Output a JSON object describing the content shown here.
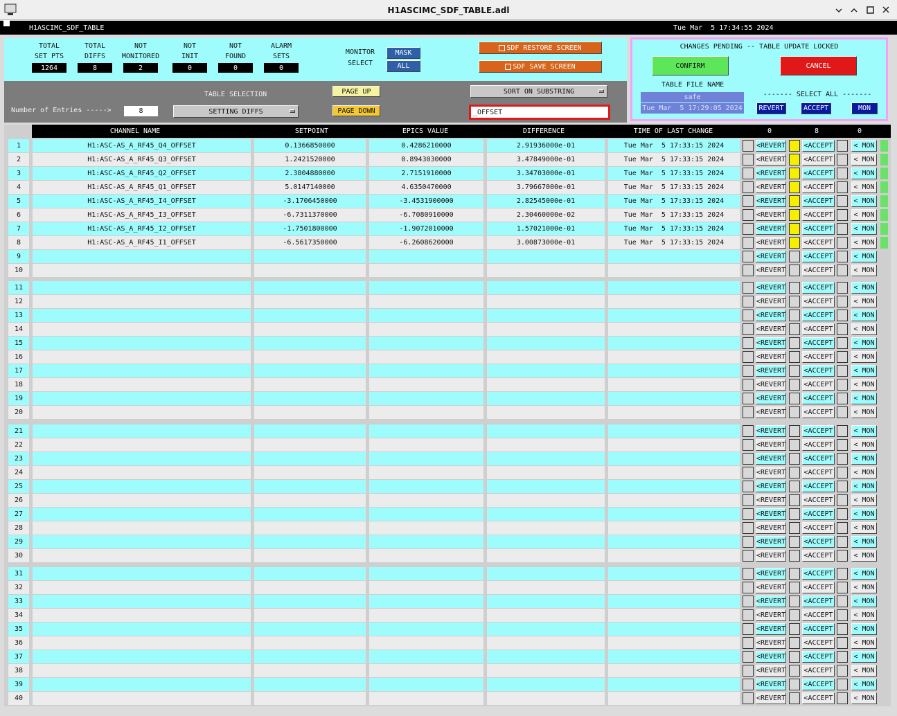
{
  "window": {
    "title": "H1ASCIMC_SDF_TABLE.adl"
  },
  "header": {
    "screen_name": "H1ASCIMC_SDF_TABLE",
    "datetime": "Tue Mar  5 17:34:55 2024"
  },
  "stats": [
    {
      "label": [
        "TOTAL",
        "SET PTS"
      ],
      "value": "1264"
    },
    {
      "label": [
        "TOTAL",
        "DIFFS"
      ],
      "value": "8"
    },
    {
      "label": [
        "NOT",
        "MONITORED"
      ],
      "value": "2"
    },
    {
      "label": [
        "NOT",
        "INIT"
      ],
      "value": "0"
    },
    {
      "label": [
        "NOT",
        "FOUND"
      ],
      "value": "0"
    },
    {
      "label": [
        "ALARM",
        "SETS"
      ],
      "value": "0"
    }
  ],
  "monitor_select": {
    "label": [
      "MONITOR",
      "SELECT"
    ],
    "buttons": [
      "MASK",
      "ALL"
    ]
  },
  "screen_buttons": [
    "SDF RESTORE SCREEN",
    "SDF SAVE SCREEN"
  ],
  "pending": {
    "message": "CHANGES PENDING -- TABLE UPDATE LOCKED",
    "confirm": "CONFIRM",
    "cancel": "CANCEL",
    "file_label": "TABLE FILE NAME",
    "file_name": "safe",
    "file_time": "Tue Mar  5 17:29:05 2024",
    "select_all": "------- SELECT ALL -------",
    "buttons": [
      "REVERT",
      "ACCEPT",
      "MON"
    ]
  },
  "selection": {
    "entries_label": "Number of Entries ----->",
    "entries": "8",
    "table_label": "TABLE SELECTION",
    "table_choice": "SETTING DIFFS",
    "page_up": "PAGE UP",
    "page_down": "PAGE DOWN",
    "sort_choice": "SORT ON SUBSTRING",
    "substring": "_OFFSET"
  },
  "table": {
    "columns": [
      "CHANNEL NAME",
      "SETPOINT",
      "EPICS VALUE",
      "DIFFERENCE",
      "TIME OF LAST CHANGE"
    ],
    "counts": [
      "0",
      "8",
      "0"
    ],
    "row_buttons": [
      "<REVERT",
      "<ACCEPT",
      "< MON"
    ],
    "row_numbers": [
      1,
      2,
      3,
      4,
      5,
      6,
      7,
      8,
      9,
      10,
      11,
      12,
      13,
      14,
      15,
      16,
      17,
      18,
      19,
      20,
      21,
      22,
      23,
      24,
      25,
      26,
      27,
      28,
      29,
      30,
      31,
      32,
      33,
      34,
      35,
      36,
      37,
      38,
      39,
      40
    ],
    "rows": [
      [
        "H1:ASC-AS_A_RF45_Q4_OFFSET",
        "0.1366850000",
        "0.4286210000",
        "2.91936000e-01",
        "Tue Mar  5 17:33:15 2024"
      ],
      [
        "H1:ASC-AS_A_RF45_Q3_OFFSET",
        "1.2421520000",
        "0.8943030000",
        "3.47849000e-01",
        "Tue Mar  5 17:33:15 2024"
      ],
      [
        "H1:ASC-AS_A_RF45_Q2_OFFSET",
        "2.3804880000",
        "2.7151910000",
        "3.34703000e-01",
        "Tue Mar  5 17:33:15 2024"
      ],
      [
        "H1:ASC-AS_A_RF45_Q1_OFFSET",
        "5.0147140000",
        "4.6350470000",
        "3.79667000e-01",
        "Tue Mar  5 17:33:15 2024"
      ],
      [
        "H1:ASC-AS_A_RF45_I4_OFFSET",
        "-3.1706450000",
        "-3.4531900000",
        "2.82545000e-01",
        "Tue Mar  5 17:33:15 2024"
      ],
      [
        "H1:ASC-AS_A_RF45_I3_OFFSET",
        "-6.7311370000",
        "-6.7080910000",
        "2.30460000e-02",
        "Tue Mar  5 17:33:15 2024"
      ],
      [
        "H1:ASC-AS_A_RF45_I2_OFFSET",
        "-1.7501800000",
        "-1.9072010000",
        "1.57021000e-01",
        "Tue Mar  5 17:33:15 2024"
      ],
      [
        "H1:ASC-AS_A_RF45_I1_OFFSET",
        "-6.5617350000",
        "-6.2608620000",
        "3.00873000e-01",
        "Tue Mar  5 17:33:15 2024"
      ]
    ]
  }
}
